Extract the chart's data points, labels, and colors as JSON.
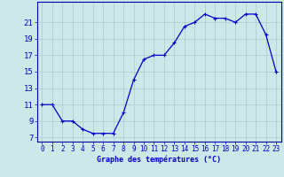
{
  "x": [
    0,
    1,
    2,
    3,
    4,
    5,
    6,
    7,
    8,
    9,
    10,
    11,
    12,
    13,
    14,
    15,
    16,
    17,
    18,
    19,
    20,
    21,
    22,
    23
  ],
  "y": [
    11,
    11,
    9,
    9,
    8,
    7.5,
    7.5,
    7.5,
    10,
    14,
    16.5,
    17,
    17,
    18.5,
    20.5,
    21,
    22,
    21.5,
    21.5,
    21,
    22,
    22,
    19.5,
    15.0
  ],
  "xlabel": "Graphe des températures (°C)",
  "ylim": [
    6.5,
    23.5
  ],
  "xlim": [
    -0.5,
    23.5
  ],
  "yticks": [
    7,
    9,
    11,
    13,
    15,
    17,
    19,
    21
  ],
  "xtick_labels": [
    "0",
    "1",
    "2",
    "3",
    "4",
    "5",
    "6",
    "7",
    "8",
    "9",
    "10",
    "11",
    "12",
    "13",
    "14",
    "15",
    "16",
    "17",
    "18",
    "19",
    "20",
    "21",
    "22",
    "23"
  ],
  "line_color": "#0000cc",
  "marker": "+",
  "marker_size": 3.5,
  "marker_lw": 0.8,
  "line_width": 0.9,
  "bg_color": "#cce8e8",
  "grid_color": "#aacccc",
  "axis_color": "#0000aa",
  "label_color": "#0000cc",
  "tick_color": "#0000cc",
  "tick_fontsize": 5.5,
  "xlabel_fontsize": 6.0,
  "ytick_fontsize": 6.5
}
